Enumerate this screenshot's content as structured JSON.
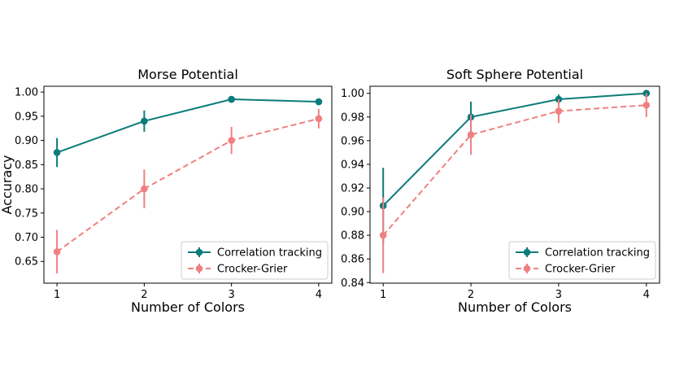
{
  "colors": {
    "correlation": "#0a7c7a",
    "crocker": "#f08080",
    "legend_border": "#cccccc",
    "axis": "#000000"
  },
  "chart_data": [
    {
      "type": "line",
      "title": "Morse Potential",
      "xlabel": "Number of Colors",
      "ylabel": "Accuracy",
      "x": [
        1,
        2,
        3,
        4
      ],
      "xlim": [
        0.85,
        4.15
      ],
      "ylim": [
        0.605,
        1.012
      ],
      "xticks": [
        1,
        2,
        3,
        4
      ],
      "xtick_labels": [
        "1",
        "2",
        "3",
        "4"
      ],
      "yticks": [
        0.65,
        0.7,
        0.75,
        0.8,
        0.85,
        0.9,
        0.95,
        1.0
      ],
      "ytick_labels": [
        "0.65",
        "0.70",
        "0.75",
        "0.80",
        "0.85",
        "0.90",
        "0.95",
        "1.00"
      ],
      "legend_position": "lower-right",
      "series": [
        {
          "name": "Correlation tracking",
          "color_key": "correlation",
          "linestyle": "solid",
          "values": [
            0.875,
            0.94,
            0.985,
            0.98
          ],
          "err": [
            0.03,
            0.022,
            0.005,
            0.007
          ]
        },
        {
          "name": "Crocker-Grier",
          "color_key": "crocker",
          "linestyle": "dashed",
          "values": [
            0.67,
            0.8,
            0.9,
            0.945
          ],
          "err": [
            0.045,
            0.04,
            0.028,
            0.02
          ]
        }
      ]
    },
    {
      "type": "line",
      "title": "Soft Sphere Potential",
      "xlabel": "Number of Colors",
      "ylabel": "",
      "x": [
        1,
        2,
        3,
        4
      ],
      "xlim": [
        0.85,
        4.15
      ],
      "ylim": [
        0.8395,
        1.006
      ],
      "xticks": [
        1,
        2,
        3,
        4
      ],
      "xtick_labels": [
        "1",
        "2",
        "3",
        "4"
      ],
      "yticks": [
        0.84,
        0.86,
        0.88,
        0.9,
        0.92,
        0.94,
        0.96,
        0.98,
        1.0
      ],
      "ytick_labels": [
        "0.84",
        "0.86",
        "0.88",
        "0.90",
        "0.92",
        "0.94",
        "0.96",
        "0.98",
        "1.00"
      ],
      "legend_position": "lower-right",
      "series": [
        {
          "name": "Correlation tracking",
          "color_key": "correlation",
          "linestyle": "solid",
          "values": [
            0.905,
            0.98,
            0.995,
            1.0
          ],
          "err": [
            0.032,
            0.013,
            0.004,
            0.002
          ]
        },
        {
          "name": "Crocker-Grier",
          "color_key": "crocker",
          "linestyle": "dashed",
          "values": [
            0.88,
            0.965,
            0.985,
            0.99
          ],
          "err": [
            0.032,
            0.017,
            0.01,
            0.01
          ]
        }
      ]
    }
  ]
}
